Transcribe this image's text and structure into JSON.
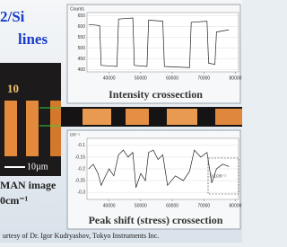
{
  "header": {
    "title_line1": "2/Si",
    "title_line2": "lines"
  },
  "image": {
    "label": "10",
    "scale": "10µm",
    "caption_line1": "MAN image",
    "caption_line2": "0cm⁻¹"
  },
  "chart_data": [
    {
      "type": "line",
      "title": "Intensity crossection",
      "y_label": "Counts",
      "color": "#222222",
      "x": [
        33500,
        37000,
        37500,
        42500,
        43000,
        47500,
        48000,
        52000,
        52500,
        57000,
        57500,
        65500,
        66000,
        71000,
        71500,
        73500,
        74000,
        78000
      ],
      "values": [
        610,
        605,
        420,
        415,
        635,
        640,
        420,
        415,
        630,
        625,
        415,
        410,
        620,
        625,
        430,
        425,
        575,
        585
      ],
      "xlim": [
        33000,
        81000
      ],
      "ylim": [
        390,
        665
      ],
      "xticks": [
        40000,
        50000,
        60000,
        70000,
        80000
      ],
      "yticks": [
        400,
        450,
        500,
        550,
        600,
        650
      ]
    },
    {
      "type": "line",
      "title": "Peak shift (stress) crossection",
      "y_label": "cm⁻¹",
      "color": "#222222",
      "annotation": "0.1cm⁻¹",
      "x": [
        33500,
        35000,
        36500,
        37500,
        38500,
        40000,
        41500,
        43000,
        44500,
        46000,
        47500,
        48500,
        50000,
        51500,
        52500,
        54000,
        55500,
        57000,
        58500,
        61000,
        63500,
        65500,
        67000,
        69000,
        71000,
        72500,
        74000,
        76000,
        78000
      ],
      "values": [
        -0.2,
        -0.18,
        -0.22,
        -0.27,
        -0.24,
        -0.2,
        -0.23,
        -0.14,
        -0.12,
        -0.15,
        -0.13,
        -0.28,
        -0.22,
        -0.25,
        -0.13,
        -0.12,
        -0.16,
        -0.14,
        -0.27,
        -0.23,
        -0.25,
        -0.21,
        -0.12,
        -0.15,
        -0.13,
        -0.26,
        -0.2,
        -0.18,
        -0.19
      ],
      "xlim": [
        33000,
        81000
      ],
      "ylim": [
        -0.33,
        -0.07
      ],
      "xticks": [
        40000,
        50000,
        60000,
        70000,
        80000
      ],
      "yticks": [
        -0.3,
        -0.25,
        -0.2,
        -0.15,
        -0.1
      ]
    }
  ],
  "footer": {
    "credit": "urtesy of Dr. Igor Kudryashov, Tokyo Instruments Inc."
  }
}
